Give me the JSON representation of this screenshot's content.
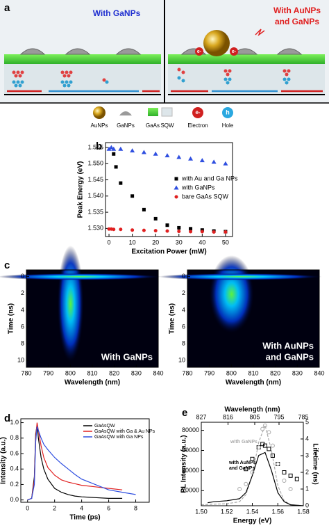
{
  "panel_a": {
    "label": "a",
    "left_title": "With GaNPs",
    "right_title": [
      "With AuNPs",
      "and GaNPs"
    ],
    "electron_labels": [
      "e-",
      "e-"
    ]
  },
  "legend": {
    "items": [
      "AuNPs",
      "GaNPs",
      "GaAs",
      "SQW",
      "Electron",
      "Hole"
    ],
    "icons": [
      "e-",
      "h"
    ]
  },
  "chart_data": [
    {
      "type": "scatter",
      "panel": "b",
      "xlabel": "Excitation Power (mW)",
      "ylabel": "Peak Energy (eV)",
      "xlim": [
        -1.5,
        53
      ],
      "xticks": [
        0,
        10,
        20,
        30,
        40,
        50
      ],
      "ylim": [
        1.5275,
        1.5565
      ],
      "yticks": [
        {
          "value": 1.53,
          "label": "1.530"
        },
        1.535,
        {
          "value": 1.54,
          "label": "1.540"
        },
        1.545,
        {
          "value": 1.55,
          "label": "1.550"
        },
        1.555
      ],
      "legend": "right",
      "series": [
        {
          "name": "with Au and Ga NPs",
          "color": "#000000",
          "marker": "square",
          "x": [
            2,
            3,
            5,
            10,
            15,
            20,
            25,
            30,
            35,
            40,
            45,
            50
          ],
          "values": [
            1.553,
            1.549,
            1.544,
            1.54,
            1.5358,
            1.533,
            1.531,
            1.5302,
            1.5299,
            1.5295,
            1.5292,
            1.529
          ]
        },
        {
          "name": "with GaNPs",
          "color": "#2f4fe0",
          "marker": "triangle",
          "x": [
            0,
            1,
            2,
            5,
            10,
            15,
            20,
            25,
            30,
            35,
            40,
            45,
            50
          ],
          "values": [
            1.5545,
            1.555,
            1.5545,
            1.5545,
            1.554,
            1.5535,
            1.553,
            1.5525,
            1.552,
            1.5515,
            1.551,
            1.5505,
            1.55
          ]
        },
        {
          "name": "bare GaAs SQW",
          "color": "#e02020",
          "marker": "circle",
          "x": [
            0,
            1,
            2,
            5,
            10,
            15,
            20,
            25,
            30,
            35,
            40,
            45,
            50
          ],
          "values": [
            1.5298,
            1.5298,
            1.5297,
            1.5297,
            1.5295,
            1.5294,
            1.5293,
            1.5292,
            1.5291,
            1.529,
            1.529,
            1.5289,
            1.5289
          ]
        }
      ]
    },
    {
      "type": "heatmap",
      "panel": "c",
      "annotation": [
        "With GaNPs"
      ],
      "xlabel": "Wavelength (nm)",
      "ylabel": "Time (ns)",
      "xlim": [
        780,
        840
      ],
      "xticks": [
        780,
        790,
        800,
        810,
        820,
        830,
        840
      ],
      "ylim": [
        -0.8,
        10.8
      ],
      "yticks": [
        0,
        2,
        4,
        6,
        8,
        10
      ]
    },
    {
      "type": "heatmap",
      "annotation": [
        "With AuNPs",
        "and GaNPs"
      ],
      "xlabel": "Wavelength (nm)",
      "ylabel": "Time (ns)",
      "xlim": [
        780,
        840
      ],
      "xticks": [
        780,
        790,
        800,
        810,
        820,
        830,
        840
      ],
      "ylim": [
        -0.8,
        10.8
      ],
      "yticks": [
        0,
        2,
        4,
        6,
        8,
        10
      ]
    },
    {
      "type": "line",
      "panel": "d",
      "xlabel": "Time (ps)",
      "ylabel": "Intensity (a.u.)",
      "xlim": [
        -0.5,
        9
      ],
      "xticks": [
        0,
        2,
        4,
        6,
        8
      ],
      "ylim": [
        -0.03,
        1.05
      ],
      "yticks": [
        {
          "value": 0,
          "label": "0.0"
        },
        0.2,
        0.4,
        0.6,
        0.8,
        {
          "value": 1,
          "label": "1.0"
        }
      ],
      "legend": "upper right",
      "x": [
        0,
        0.3,
        0.5,
        0.6,
        0.7,
        0.8,
        1,
        1.2,
        1.5,
        2,
        2.5,
        3,
        3.5,
        4,
        5,
        6,
        7,
        8
      ],
      "series": [
        {
          "name": "GaAsQW",
          "color": "#000000",
          "values": [
            0,
            0.02,
            0.3,
            0.85,
            0.97,
            0.8,
            0.55,
            0.4,
            0.27,
            0.15,
            0.1,
            0.07,
            0.05,
            0.04,
            0.03,
            0.02,
            0.02,
            null
          ]
        },
        {
          "name": "GaAsQW with Ga & Au NPs",
          "color": "#e02020",
          "values": [
            0,
            0.02,
            0.25,
            0.8,
            1,
            0.9,
            0.7,
            0.55,
            0.42,
            0.32,
            0.26,
            0.23,
            0.21,
            0.19,
            0.17,
            0.15,
            0.13,
            null
          ]
        },
        {
          "name": "GaAsQW with Ga NPs",
          "color": "#2f4fe0",
          "values": [
            0,
            0.02,
            0.2,
            0.75,
            0.95,
            0.9,
            0.8,
            0.72,
            0.65,
            0.55,
            0.47,
            0.4,
            0.33,
            0.27,
            0.2,
            0.13,
            0.1,
            0.07
          ]
        }
      ]
    },
    {
      "type": "line",
      "panel": "e",
      "xlabel": "Energy (eV)",
      "ylabel": "PL Intensity (a.u.)",
      "y2label": "Lifetime (ns)",
      "x2label": "Wavelength (nm)",
      "xlim": [
        1.5,
        1.58
      ],
      "xticks": [
        {
          "value": 1.5,
          "label": "1.50"
        },
        1.52,
        1.54,
        1.56,
        1.58
      ],
      "x2lim": [
        827,
        785
      ],
      "x2ticks": [
        827,
        816,
        805,
        795,
        785
      ],
      "ylim": [
        5000,
        88000
      ],
      "yticks": [
        20000,
        40000,
        60000,
        80000
      ],
      "y2lim": [
        0,
        5
      ],
      "y2ticks": [
        0,
        1,
        2,
        3,
        4,
        5
      ],
      "annotations": [
        "with GaNPs",
        "with AuNPs",
        "and GaNPs"
      ],
      "series": [
        {
          "name": "with GaNPs",
          "color": "#aaaaaa",
          "dash": true,
          "x": [
            1.5,
            1.51,
            1.52,
            1.53,
            1.535,
            1.54,
            1.545,
            1.55,
            1.555,
            1.56,
            1.565,
            1.57,
            1.58
          ],
          "values": [
            6000,
            6500,
            7000,
            9000,
            16000,
            35000,
            68000,
            85000,
            60000,
            25000,
            10000,
            6000,
            5000
          ]
        },
        {
          "name": "with AuNPs and GaNPs",
          "color": "#000000",
          "x": [
            1.505,
            1.51,
            1.52,
            1.53,
            1.535,
            1.54,
            1.545,
            1.55,
            1.555,
            1.56,
            1.565,
            1.57,
            1.58
          ],
          "values": [
            8000,
            9000,
            10000,
            12000,
            18000,
            35000,
            55000,
            58000,
            40000,
            18000,
            9000,
            6000,
            5000
          ]
        },
        {
          "color": "#000000",
          "marker": "square",
          "axis": "y2",
          "x": [
            1.535,
            1.54,
            1.545,
            1.548,
            1.55,
            1.553,
            1.556,
            1.56,
            1.565,
            1.57,
            1.575
          ],
          "values": [
            2.2,
            2.8,
            3.5,
            3.7,
            3.6,
            3.4,
            3,
            2.5,
            2,
            1.8,
            1.6
          ]
        },
        {
          "color": "#aaaaaa",
          "marker": "circle",
          "axis": "y2",
          "x": [
            1.53,
            1.535,
            1.54,
            1.545,
            1.548,
            1.55,
            1.553,
            1.556,
            1.56,
            1.565,
            1.57
          ],
          "values": [
            1,
            1.3,
            2,
            3.5,
            4.6,
            4.8,
            4.4,
            3.6,
            2.5,
            1.5,
            1
          ]
        }
      ]
    }
  ]
}
